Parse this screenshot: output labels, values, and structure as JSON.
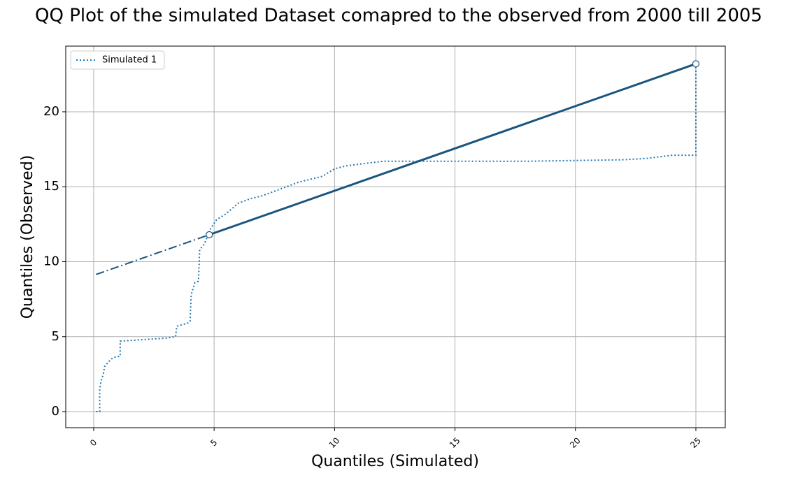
{
  "chart_data": {
    "type": "line",
    "title": "QQ Plot of the simulated Dataset comapred to the observed from 2000 till 2005",
    "x_label": "Quantiles (Simulated)",
    "y_label": "Quantiles (Observed)",
    "series": [
      {
        "name": "Simulated 1",
        "color": "#1f77b4",
        "x": [
          0.1,
          0.25,
          0.25,
          0.25,
          0.3,
          0.4,
          0.45,
          0.6,
          0.8,
          1.1,
          1.1,
          2,
          3,
          3.4,
          3.45,
          3.9,
          4.0,
          4.05,
          4.2,
          4.35,
          4.4,
          4.6,
          4.7,
          4.85,
          5.1,
          5.5,
          6,
          6.5,
          7,
          7.5,
          8,
          8.5,
          9,
          9.5,
          10,
          10.5,
          11,
          11.5,
          12,
          14,
          18,
          20,
          22,
          23,
          24,
          25,
          25
        ],
        "values": [
          0,
          0,
          0.2,
          1.5,
          2,
          2.5,
          3,
          3.3,
          3.6,
          3.7,
          4.7,
          4.8,
          4.9,
          5.0,
          5.7,
          5.9,
          6.0,
          7.8,
          8.6,
          8.7,
          10.8,
          11.2,
          11.6,
          12.2,
          12.8,
          13.2,
          13.9,
          14.2,
          14.4,
          14.7,
          15,
          15.3,
          15.5,
          15.7,
          16.2,
          16.4,
          16.5,
          16.6,
          16.7,
          16.7,
          16.7,
          16.75,
          16.8,
          16.9,
          17.1,
          17.1,
          23.2
        ]
      }
    ],
    "reference_line": {
      "color": "#1a5580",
      "x": [
        0.1,
        4.8,
        25
      ],
      "values": [
        9.15,
        11.8,
        23.2
      ]
    },
    "xlim": [
      -1.16,
      26.22
    ],
    "ylim": [
      -1.07,
      24.38
    ],
    "xticks": [
      0,
      5,
      10,
      15,
      20,
      25
    ],
    "yticks": [
      0,
      5,
      10,
      15,
      20
    ],
    "grid": true,
    "legend": "upper-left"
  }
}
